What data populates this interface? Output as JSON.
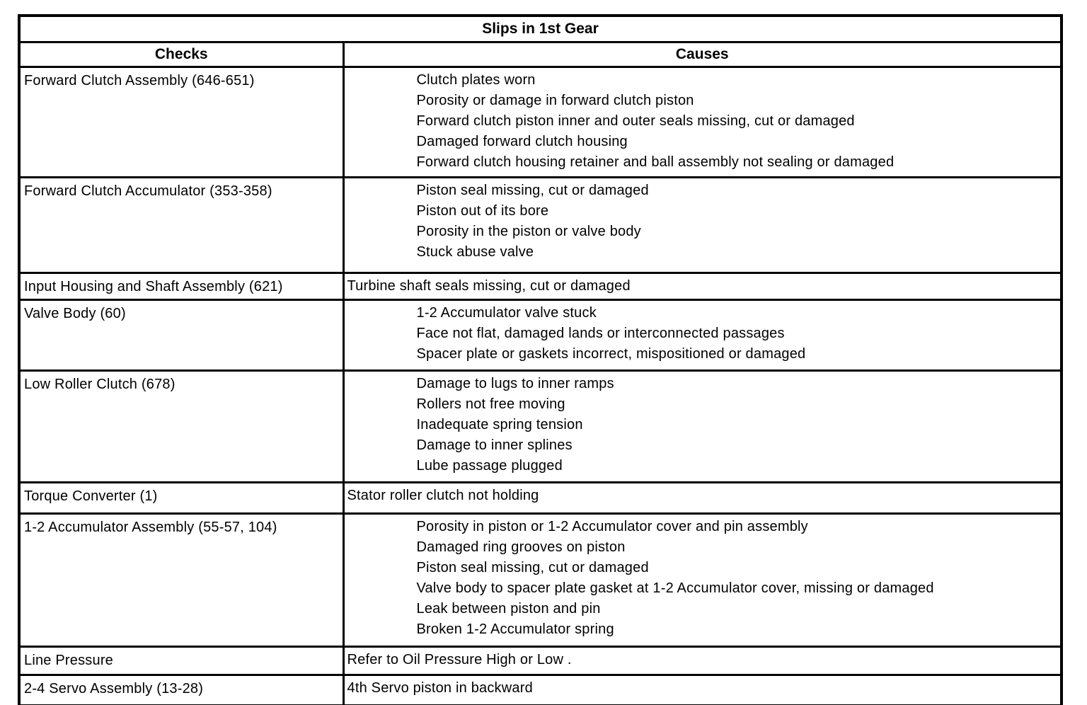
{
  "table": {
    "title": "Slips in 1st Gear",
    "columns": {
      "checks": "Checks",
      "causes": "Causes"
    },
    "rows": [
      {
        "check": "Forward Clutch Assembly (646-651)",
        "causes": [
          "Clutch plates worn",
          "Porosity or damage in forward clutch piston",
          "Forward clutch piston inner and outer seals missing, cut or damaged",
          "Damaged forward clutch housing",
          "Forward clutch housing retainer and ball assembly not sealing or damaged"
        ]
      },
      {
        "check": "Forward Clutch Accumulator (353-358)",
        "causes": [
          "Piston seal missing, cut or damaged",
          "Piston out of its bore",
          "Porosity in the piston or valve body",
          "Stuck abuse valve"
        ]
      },
      {
        "check": "Input Housing and Shaft Assembly (621)",
        "causes": [
          "Turbine shaft seals missing, cut or damaged"
        ]
      },
      {
        "check": "Valve Body (60)",
        "causes": [
          "1-2 Accumulator valve stuck",
          "Face not flat, damaged lands or interconnected passages",
          "Spacer plate or gaskets incorrect, mispositioned or damaged"
        ]
      },
      {
        "check": "Low Roller Clutch (678)",
        "causes": [
          "Damage to lugs to inner ramps",
          "Rollers not free moving",
          "Inadequate spring tension",
          "Damage to inner splines",
          "Lube passage plugged"
        ]
      },
      {
        "check": "Torque Converter (1)",
        "causes": [
          "Stator roller clutch not holding"
        ]
      },
      {
        "check": "1-2 Accumulator Assembly (55-57, 104)",
        "causes": [
          "Porosity in piston or 1-2 Accumulator cover and pin assembly",
          "Damaged ring grooves on piston",
          "Piston seal missing, cut or damaged",
          "Valve body to spacer plate gasket at 1-2 Accumulator cover, missing or damaged",
          "Leak between piston and pin",
          "Broken 1-2 Accumulator spring"
        ]
      },
      {
        "check": "Line Pressure",
        "causes": [
          "Refer to Oil Pressure High or Low ."
        ]
      },
      {
        "check": "2-4 Servo Assembly (13-28)",
        "causes": [
          "4th Servo piston in backward"
        ]
      }
    ],
    "colors": {
      "border": "#000000",
      "text": "#000000",
      "background": "#ffffff"
    }
  }
}
